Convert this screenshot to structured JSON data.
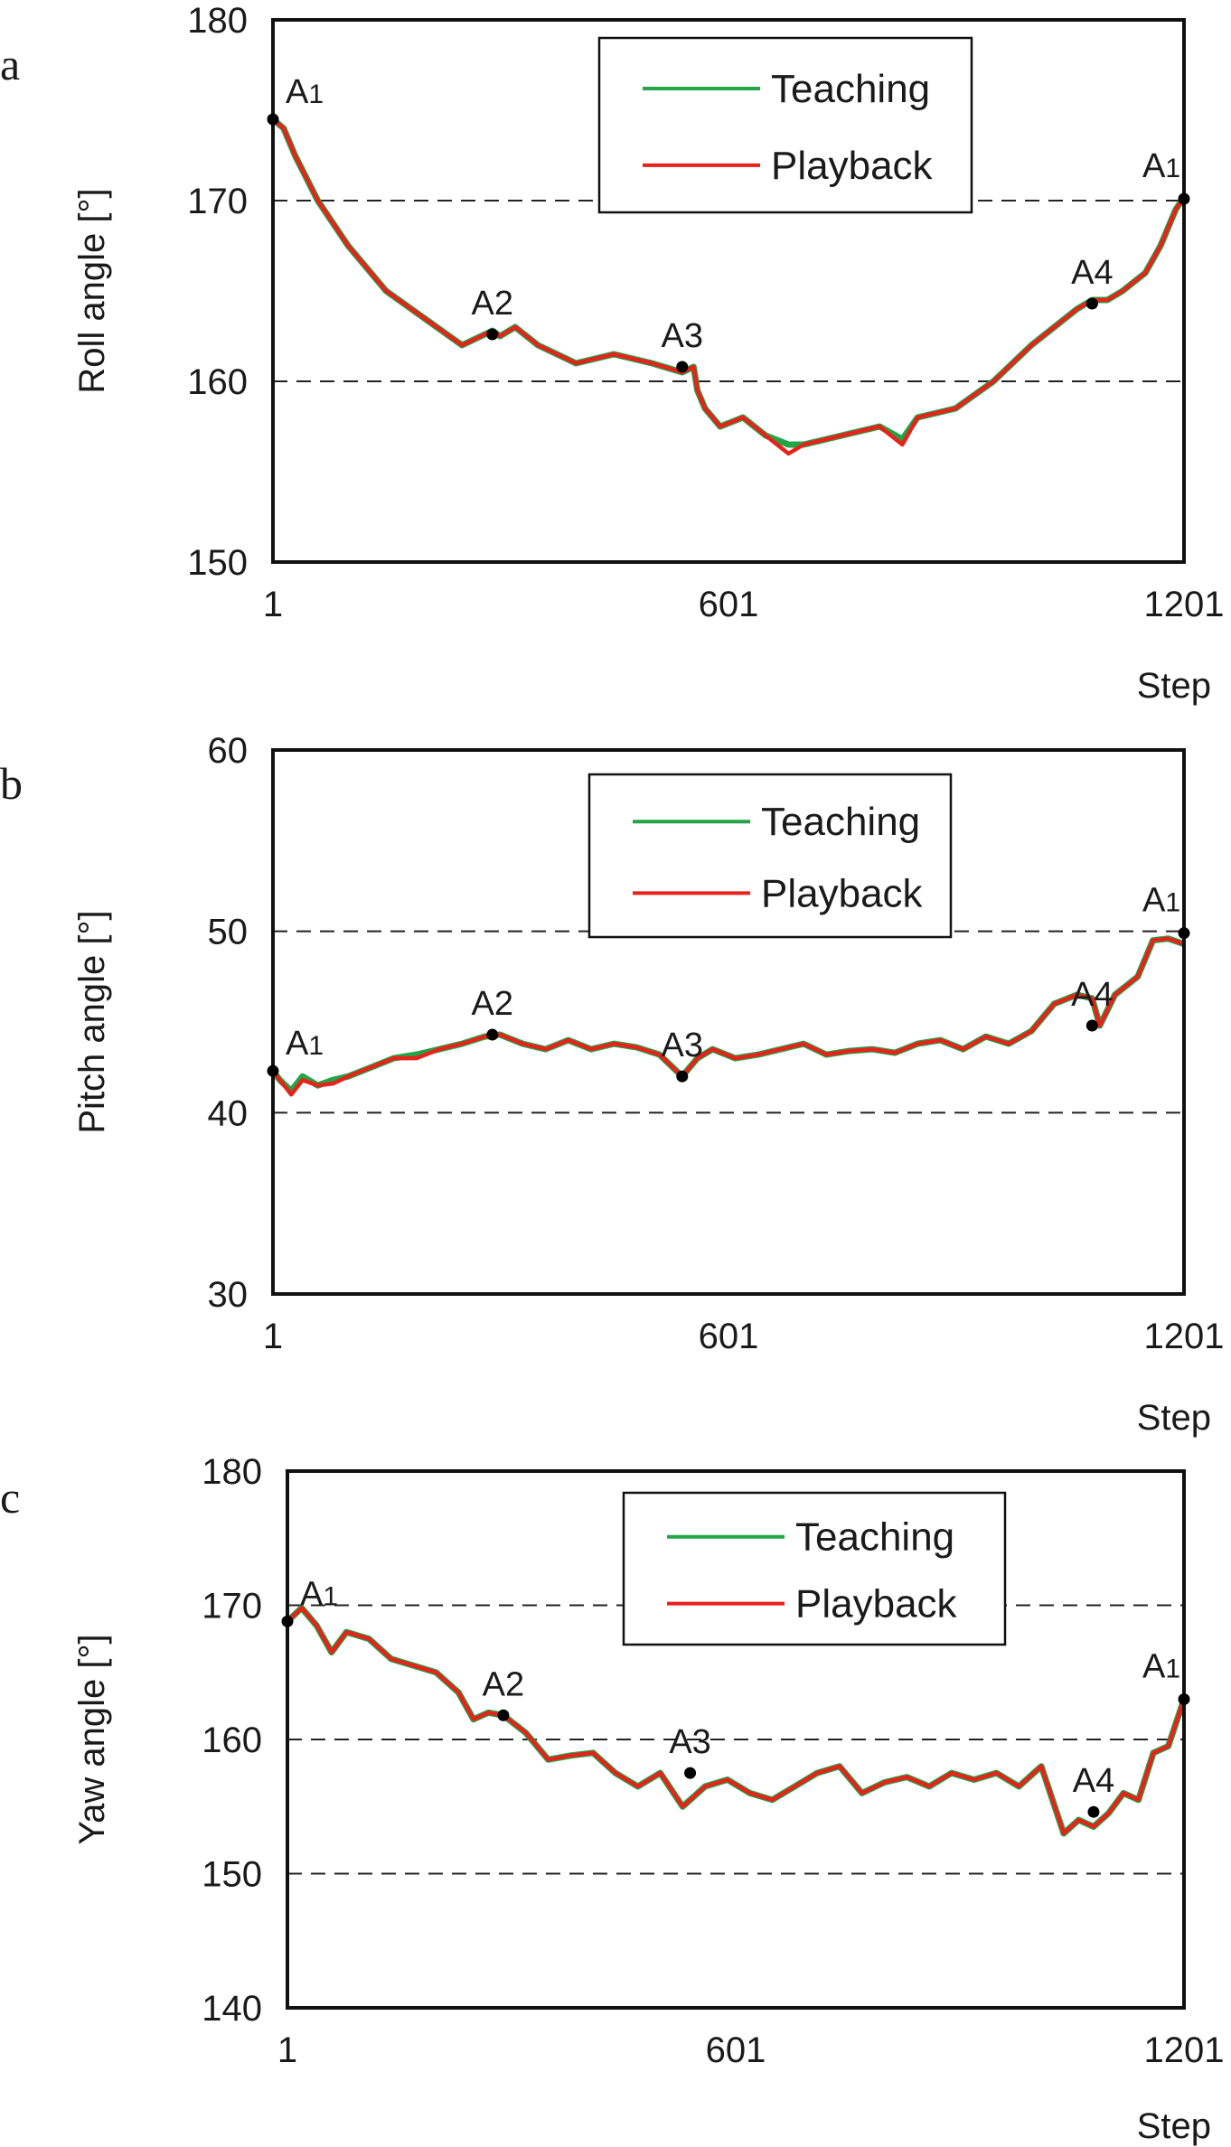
{
  "colors": {
    "teaching": "#22a447",
    "playback": "#e8211b",
    "axis": "#111111",
    "grid": "#222222",
    "marker": "#000000"
  },
  "chart_data": [
    {
      "type": "line",
      "panel_label": "a",
      "ylabel": "Roll angle [°]",
      "xlabel": "Step",
      "xlim": [
        1,
        1201
      ],
      "ylim": [
        150,
        180
      ],
      "xticks": [
        "1",
        "601",
        "1201"
      ],
      "xtick_values": [
        1,
        601,
        1201
      ],
      "yticks": [
        "150",
        "160",
        "170",
        "180"
      ],
      "ytick_values": [
        150,
        160,
        170,
        180
      ],
      "gridlines_y": [
        160,
        170
      ],
      "legend_position": "top-right",
      "series": [
        {
          "name": "Teaching",
          "color_key": "teaching",
          "x": [
            1,
            15,
            30,
            60,
            100,
            150,
            200,
            250,
            290,
            300,
            320,
            350,
            400,
            450,
            500,
            540,
            555,
            560,
            570,
            590,
            620,
            650,
            680,
            700,
            750,
            800,
            830,
            850,
            900,
            950,
            1000,
            1030,
            1060,
            1080,
            1100,
            1120,
            1150,
            1170,
            1190,
            1201
          ],
          "y": [
            174.5,
            174.0,
            172.5,
            170.0,
            167.5,
            165.0,
            163.5,
            162.0,
            162.8,
            162.5,
            163.0,
            162.0,
            161.0,
            161.5,
            161.0,
            160.5,
            160.8,
            159.5,
            158.5,
            157.5,
            158.0,
            157.0,
            156.5,
            156.5,
            157.0,
            157.5,
            156.8,
            158.0,
            158.5,
            160.0,
            162.0,
            163.0,
            164.0,
            164.5,
            164.5,
            165.0,
            166.0,
            167.5,
            169.5,
            170.2
          ]
        },
        {
          "name": "Playback",
          "color_key": "playback",
          "x": [
            1,
            15,
            30,
            60,
            100,
            150,
            200,
            250,
            290,
            300,
            320,
            350,
            400,
            450,
            500,
            540,
            555,
            560,
            570,
            590,
            620,
            650,
            680,
            700,
            750,
            800,
            830,
            850,
            900,
            950,
            1000,
            1030,
            1060,
            1080,
            1100,
            1120,
            1150,
            1170,
            1190,
            1201
          ],
          "y": [
            174.5,
            174.0,
            172.5,
            170.0,
            167.5,
            165.0,
            163.5,
            162.0,
            162.8,
            162.5,
            163.0,
            162.0,
            161.0,
            161.5,
            161.0,
            160.5,
            160.8,
            159.5,
            158.5,
            157.5,
            158.0,
            157.0,
            156.0,
            156.5,
            157.0,
            157.5,
            156.5,
            158.0,
            158.5,
            160.0,
            162.0,
            163.0,
            164.0,
            164.5,
            164.5,
            165.0,
            166.0,
            167.5,
            169.5,
            170.2
          ]
        }
      ],
      "annotations": [
        {
          "text": "A",
          "sub": "1",
          "x": 1,
          "y": 174.5
        },
        {
          "text": "A2",
          "sub": "",
          "x": 290,
          "y": 162.6
        },
        {
          "text": "A3",
          "sub": "",
          "x": 540,
          "y": 160.8
        },
        {
          "text": "A4",
          "sub": "",
          "x": 1080,
          "y": 164.3
        },
        {
          "text": "A",
          "sub": "1",
          "x": 1201,
          "y": 170.1
        }
      ]
    },
    {
      "type": "line",
      "panel_label": "b",
      "ylabel": "Pitch angle [°]",
      "xlabel": "Step",
      "xlim": [
        1,
        1201
      ],
      "ylim": [
        30,
        60
      ],
      "xticks": [
        "1",
        "601",
        "1201"
      ],
      "xtick_values": [
        1,
        601,
        1201
      ],
      "yticks": [
        "30",
        "40",
        "50",
        "60"
      ],
      "ytick_values": [
        30,
        40,
        50,
        60
      ],
      "gridlines_y": [
        40,
        50
      ],
      "legend_position": "top-center",
      "series": [
        {
          "name": "Teaching",
          "color_key": "teaching",
          "x": [
            1,
            10,
            25,
            40,
            60,
            80,
            100,
            130,
            160,
            190,
            220,
            250,
            280,
            300,
            330,
            360,
            390,
            420,
            450,
            480,
            510,
            540,
            560,
            580,
            610,
            640,
            670,
            700,
            730,
            760,
            790,
            820,
            850,
            880,
            910,
            940,
            970,
            1000,
            1030,
            1060,
            1080,
            1090,
            1110,
            1140,
            1160,
            1180,
            1201
          ],
          "y": [
            42.3,
            41.8,
            41.2,
            42.0,
            41.5,
            41.8,
            42.0,
            42.5,
            43.0,
            43.2,
            43.5,
            43.8,
            44.2,
            44.3,
            43.8,
            43.5,
            44.0,
            43.5,
            43.8,
            43.6,
            43.2,
            42.0,
            43.0,
            43.5,
            43.0,
            43.2,
            43.5,
            43.8,
            43.2,
            43.4,
            43.5,
            43.3,
            43.8,
            44.0,
            43.5,
            44.2,
            43.8,
            44.5,
            46.0,
            46.5,
            46.3,
            44.8,
            46.5,
            47.5,
            49.5,
            49.6,
            49.3
          ]
        },
        {
          "name": "Playback",
          "color_key": "playback",
          "x": [
            1,
            10,
            25,
            40,
            60,
            80,
            100,
            130,
            160,
            190,
            220,
            250,
            280,
            300,
            330,
            360,
            390,
            420,
            450,
            480,
            510,
            540,
            560,
            580,
            610,
            640,
            670,
            700,
            730,
            760,
            790,
            820,
            850,
            880,
            910,
            940,
            970,
            1000,
            1030,
            1060,
            1080,
            1090,
            1110,
            1140,
            1160,
            1180,
            1201
          ],
          "y": [
            42.3,
            41.8,
            41.0,
            41.8,
            41.5,
            41.6,
            42.0,
            42.5,
            43.0,
            43.0,
            43.5,
            43.8,
            44.2,
            44.3,
            43.8,
            43.5,
            44.0,
            43.5,
            43.8,
            43.6,
            43.2,
            42.0,
            43.0,
            43.5,
            43.0,
            43.2,
            43.5,
            43.8,
            43.2,
            43.4,
            43.5,
            43.3,
            43.8,
            44.0,
            43.5,
            44.2,
            43.8,
            44.5,
            46.0,
            46.5,
            46.3,
            44.8,
            46.5,
            47.5,
            49.5,
            49.6,
            49.3
          ]
        }
      ],
      "annotations": [
        {
          "text": "A",
          "sub": "1",
          "x": 1,
          "y": 42.3
        },
        {
          "text": "A2",
          "sub": "",
          "x": 290,
          "y": 44.3
        },
        {
          "text": "A3",
          "sub": "",
          "x": 540,
          "y": 42.0
        },
        {
          "text": "A4",
          "sub": "",
          "x": 1080,
          "y": 44.8
        },
        {
          "text": "A",
          "sub": "1",
          "x": 1201,
          "y": 49.9
        }
      ]
    },
    {
      "type": "line",
      "panel_label": "c",
      "ylabel": "Yaw angle [°]",
      "xlabel": "Step",
      "xlim": [
        1,
        1201
      ],
      "ylim": [
        140,
        180
      ],
      "xticks": [
        "1",
        "601",
        "1201"
      ],
      "xtick_values": [
        1,
        601,
        1201
      ],
      "yticks": [
        "140",
        "150",
        "160",
        "170",
        "180"
      ],
      "ytick_values": [
        140,
        150,
        160,
        170,
        180
      ],
      "gridlines_y": [
        150,
        160,
        170
      ],
      "legend_position": "top-right",
      "series": [
        {
          "name": "Teaching",
          "color_key": "teaching",
          "x": [
            1,
            20,
            40,
            60,
            80,
            110,
            140,
            170,
            200,
            230,
            250,
            270,
            290,
            320,
            350,
            380,
            410,
            440,
            470,
            500,
            530,
            560,
            590,
            620,
            650,
            680,
            710,
            740,
            770,
            800,
            830,
            860,
            890,
            920,
            950,
            980,
            1010,
            1040,
            1060,
            1080,
            1100,
            1120,
            1140,
            1160,
            1180,
            1201
          ],
          "y": [
            168.8,
            169.8,
            168.5,
            166.5,
            168.0,
            167.5,
            166.0,
            165.5,
            165.0,
            163.5,
            161.5,
            162.0,
            161.8,
            160.5,
            158.5,
            158.8,
            159.0,
            157.5,
            156.5,
            157.5,
            155.0,
            156.5,
            157.0,
            156.0,
            155.5,
            156.5,
            157.5,
            158.0,
            156.0,
            156.8,
            157.2,
            156.5,
            157.5,
            157.0,
            157.5,
            156.5,
            158.0,
            153.0,
            154.0,
            153.5,
            154.5,
            156.0,
            155.5,
            159.0,
            159.5,
            163.0
          ]
        },
        {
          "name": "Playback",
          "color_key": "playback",
          "x": [
            1,
            20,
            40,
            60,
            80,
            110,
            140,
            170,
            200,
            230,
            250,
            270,
            290,
            320,
            350,
            380,
            410,
            440,
            470,
            500,
            530,
            560,
            590,
            620,
            650,
            680,
            710,
            740,
            770,
            800,
            830,
            860,
            890,
            920,
            950,
            980,
            1010,
            1040,
            1060,
            1080,
            1100,
            1120,
            1140,
            1160,
            1180,
            1201
          ],
          "y": [
            168.8,
            169.8,
            168.5,
            166.5,
            168.0,
            167.5,
            166.0,
            165.5,
            165.0,
            163.5,
            161.5,
            162.0,
            161.8,
            160.5,
            158.5,
            158.8,
            159.0,
            157.5,
            156.5,
            157.5,
            155.0,
            156.5,
            157.0,
            156.0,
            155.5,
            156.5,
            157.5,
            158.0,
            156.0,
            156.8,
            157.2,
            156.5,
            157.5,
            157.0,
            157.5,
            156.5,
            158.0,
            153.0,
            154.0,
            153.5,
            154.5,
            156.0,
            155.5,
            159.0,
            159.5,
            163.0
          ]
        }
      ],
      "annotations": [
        {
          "text": "A",
          "sub": "1",
          "x": 1,
          "y": 168.8
        },
        {
          "text": "A2",
          "sub": "",
          "x": 290,
          "y": 161.8
        },
        {
          "text": "A3",
          "sub": "",
          "x": 540,
          "y": 157.5
        },
        {
          "text": "A4",
          "sub": "",
          "x": 1080,
          "y": 154.6
        },
        {
          "text": "A",
          "sub": "1",
          "x": 1201,
          "y": 163.0
        }
      ]
    }
  ]
}
